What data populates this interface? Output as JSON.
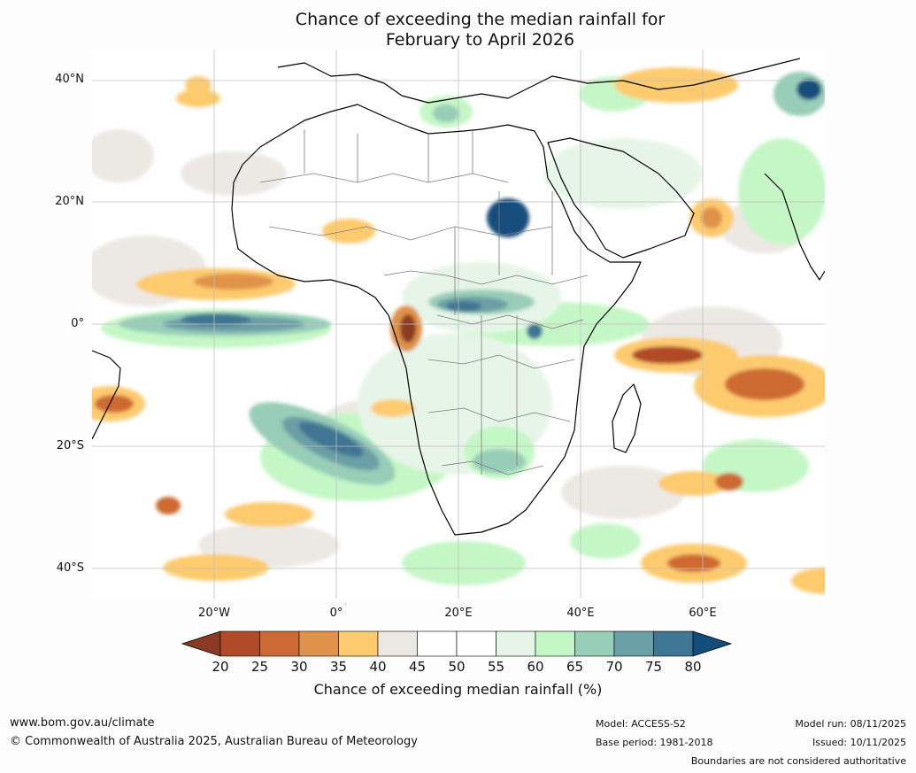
{
  "title": {
    "line1": "Chance of exceeding the median rainfall for",
    "line2": "February to April 2026"
  },
  "axes": {
    "lat_labels": [
      "40°N",
      "20°N",
      "0°",
      "20°S",
      "40°S"
    ],
    "lon_labels": [
      "20°W",
      "0°",
      "20°E",
      "40°E",
      "60°E"
    ]
  },
  "colorbar": {
    "ticks": [
      "20",
      "25",
      "30",
      "35",
      "40",
      "45",
      "50",
      "55",
      "60",
      "65",
      "70",
      "75",
      "80"
    ],
    "colors": [
      "#8b3a24",
      "#b04a28",
      "#cd6a33",
      "#e0924a",
      "#fdcb6e",
      "#ece9e4",
      "#ffffff",
      "#ffffff",
      "#e7f5e8",
      "#c5f7c6",
      "#98cdb8",
      "#6a9fa5",
      "#3f7693",
      "#124d7c"
    ],
    "label": "Chance of exceeding median rainfall (%)"
  },
  "footer": {
    "website": "www.bom.gov.au/climate",
    "copyright": "© Commonwealth of Australia 2025, Australian Bureau of Meteorology",
    "model": "Model: ACCESS-S2",
    "base_period": "Base period: 1981-2018",
    "model_run": "Model run: 08/11/2025",
    "issued": "Issued: 10/11/2025",
    "disclaimer": "Boundaries are not considered authoritative"
  }
}
